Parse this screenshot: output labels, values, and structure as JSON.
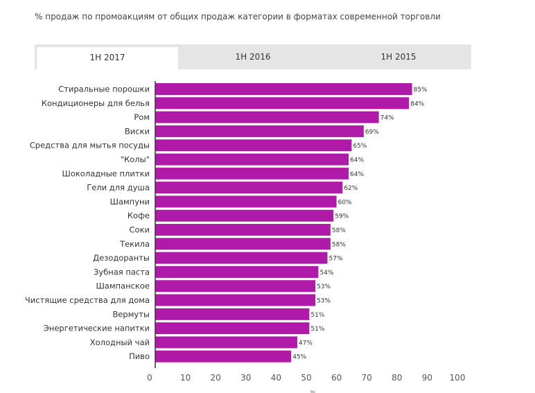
{
  "title": "% продаж по промоакциям от общих продаж категории в форматах современной торговли",
  "tabs": [
    {
      "label": "1H 2017",
      "active": true
    },
    {
      "label": "1H 2016",
      "active": false
    },
    {
      "label": "1H 2015",
      "active": false
    }
  ],
  "colors": {
    "bar": "#b01aa8",
    "axis": "#333333",
    "tab_bg": "#e5e5e5"
  },
  "chart_data": {
    "type": "bar",
    "orientation": "horizontal",
    "categories": [
      "Стиральные порошки",
      "Кондиционеры для белья",
      "Ром",
      "Виски",
      "Средства для мытья посуды",
      "\"Колы\"",
      "Шоколадные плитки",
      "Гели для душа",
      "Шампуни",
      "Кофе",
      "Соки",
      "Текила",
      "Дезодоранты",
      "Зубная паста",
      "Шампанское",
      "Чистящие средства для дома",
      "Вермуты",
      "Энергетические напитки",
      "Холодный чай",
      "Пиво"
    ],
    "values": [
      85,
      84,
      74,
      69,
      65,
      64,
      64,
      62,
      60,
      59,
      58,
      58,
      57,
      54,
      53,
      53,
      51,
      51,
      47,
      45
    ],
    "value_labels": [
      "85%",
      "84%",
      "74%",
      "69%",
      "65%",
      "64%",
      "64%",
      "62%",
      "60%",
      "59%",
      "58%",
      "58%",
      "57%",
      "54%",
      "53%",
      "53%",
      "51%",
      "51%",
      "47%",
      "45%"
    ],
    "xticks": [
      "0",
      "10",
      "20",
      "30",
      "40",
      "50",
      "60",
      "70",
      "80",
      "90",
      "100"
    ],
    "xlim": [
      0,
      100
    ],
    "xlabel": "%",
    "grid": false
  }
}
